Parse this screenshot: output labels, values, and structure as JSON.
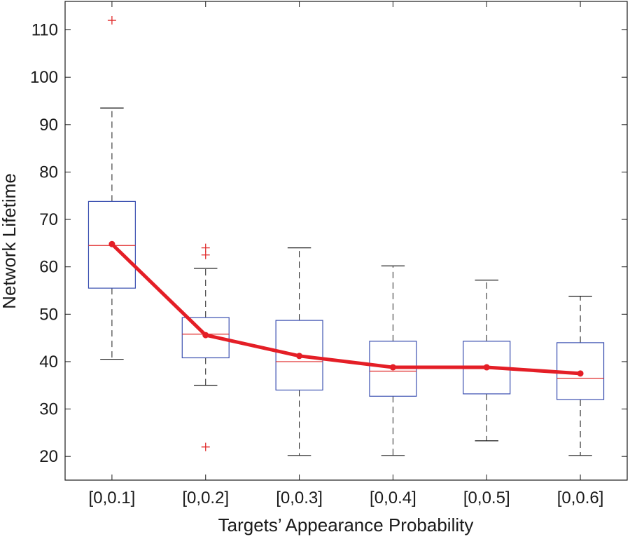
{
  "chart_data": {
    "type": "box",
    "xlabel": "Targets’ Appearance Probability",
    "ylabel": "Network Lifetime",
    "ylim": [
      15,
      116
    ],
    "yticks": [
      20,
      30,
      40,
      50,
      60,
      70,
      80,
      90,
      100,
      110
    ],
    "grid": false,
    "categories": [
      "[0,0.1]",
      "[0,0.2]",
      "[0,0.3]",
      "[0,0.4]",
      "[0,0.5]",
      "[0,0.6]"
    ],
    "boxes": [
      {
        "whisker_low": 40.5,
        "q1": 55.5,
        "median": 64.5,
        "q3": 73.8,
        "whisker_high": 93.5,
        "outliers": [
          112
        ]
      },
      {
        "whisker_low": 35,
        "q1": 40.8,
        "median": 45.8,
        "q3": 49.3,
        "whisker_high": 59.7,
        "outliers": [
          22,
          62.5,
          64
        ]
      },
      {
        "whisker_low": 20.2,
        "q1": 34,
        "median": 40,
        "q3": 48.7,
        "whisker_high": 64,
        "outliers": []
      },
      {
        "whisker_low": 20.2,
        "q1": 32.7,
        "median": 38,
        "q3": 44.3,
        "whisker_high": 60.2,
        "outliers": []
      },
      {
        "whisker_low": 23.3,
        "q1": 33.2,
        "median": 38.5,
        "q3": 44.3,
        "whisker_high": 57.2,
        "outliers": []
      },
      {
        "whisker_low": 20.2,
        "q1": 32,
        "median": 36.5,
        "q3": 44,
        "whisker_high": 53.8,
        "outliers": []
      }
    ],
    "mean_line": [
      64.8,
      45.6,
      41.2,
      38.8,
      38.8,
      37.5
    ],
    "colors": {
      "box": "#3a4fb0",
      "median": "#e02a2a",
      "whisker": "#1a1a1a",
      "outlier": "#e02a2a",
      "mean_line": "#e41e26",
      "axis": "#1a1a1a"
    }
  }
}
